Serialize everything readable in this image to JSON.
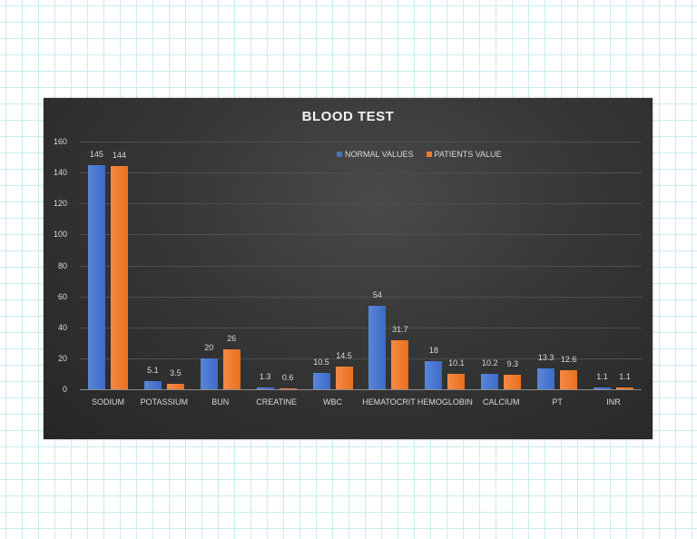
{
  "chart_data": {
    "type": "bar",
    "title": "BLOOD TEST",
    "categories": [
      "SODIUM",
      "POTASSIUM",
      "BUN",
      "CREATINE",
      "WBC",
      "HEMATOCRIT",
      "HEMOGLOBIN",
      "CALCIUM",
      "PT",
      "INR"
    ],
    "series": [
      {
        "name": "NORMAL VALUES",
        "color": "#4472c4",
        "values": [
          145,
          5.1,
          20,
          1.3,
          10.5,
          54,
          18,
          10.2,
          13.3,
          1.1
        ],
        "labels": [
          "145",
          "5.1",
          "20",
          "1.3",
          "10.5",
          "54",
          "18",
          "10.2",
          "13.3",
          "1.1"
        ]
      },
      {
        "name": "PATIENTS VALUE",
        "color": "#ed7d31",
        "values": [
          144,
          3.5,
          26,
          0.6,
          14.5,
          31.7,
          10.1,
          9.3,
          12.6,
          1.1
        ],
        "labels": [
          "144",
          "3.5",
          "26",
          "0.6",
          "14.5",
          "31.7",
          "10.1",
          "9.3",
          "12.6",
          "1.1"
        ]
      }
    ],
    "xlabel": "",
    "ylabel": "",
    "ylim": [
      0,
      160
    ],
    "yticks": [
      "0",
      "20",
      "40",
      "60",
      "80",
      "100",
      "120",
      "140",
      "160"
    ],
    "grid": true,
    "legend_position": "top"
  }
}
